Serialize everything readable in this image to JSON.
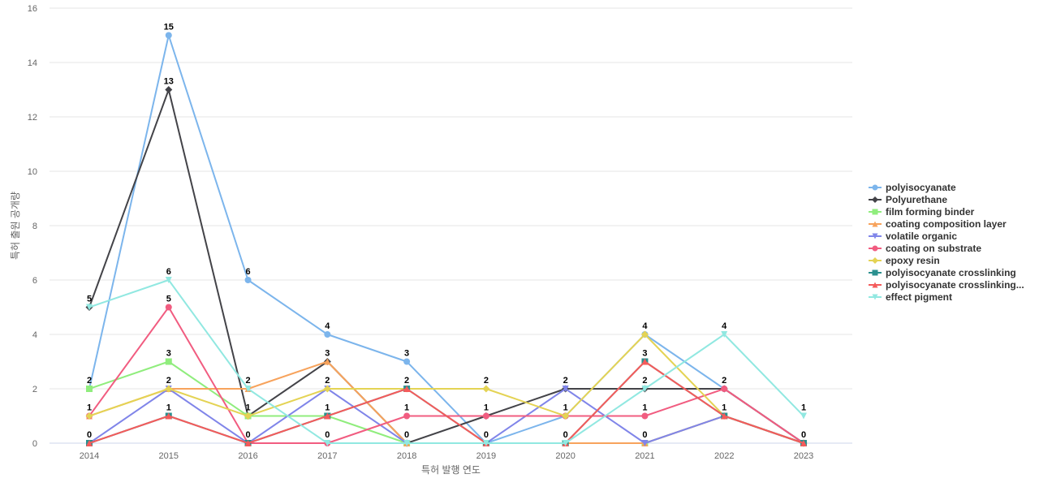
{
  "chart_data": {
    "type": "line",
    "title": "",
    "xlabel": "특허 발행 연도",
    "ylabel": "특허 출원 공개량",
    "x": [
      "2014",
      "2015",
      "2016",
      "2017",
      "2018",
      "2019",
      "2020",
      "2021",
      "2022",
      "2023"
    ],
    "ylim": [
      0,
      16
    ],
    "yticks": [
      0,
      2,
      4,
      6,
      8,
      10,
      12,
      14,
      16
    ],
    "grid": true,
    "legend_position": "right",
    "series": [
      {
        "name": "polyisocyanate",
        "color": "#7cb5ec",
        "marker": "circle",
        "values": [
          2,
          15,
          6,
          4,
          3,
          0,
          1,
          4,
          2,
          0
        ]
      },
      {
        "name": "Polyurethane",
        "color": "#434348",
        "marker": "diamond",
        "values": [
          5,
          13,
          1,
          3,
          0,
          1,
          2,
          2,
          2,
          0
        ]
      },
      {
        "name": "film forming binder",
        "color": "#90ed7d",
        "marker": "square",
        "values": [
          2,
          3,
          1,
          1,
          0,
          0,
          0,
          0,
          1,
          0
        ]
      },
      {
        "name": "coating composition layer",
        "color": "#f7a35c",
        "marker": "triangle",
        "values": [
          1,
          2,
          2,
          3,
          0,
          0,
          0,
          0,
          1,
          0
        ]
      },
      {
        "name": "volatile organic",
        "color": "#8085e9",
        "marker": "triangle-down",
        "values": [
          0,
          2,
          0,
          2,
          0,
          0,
          2,
          0,
          1,
          0
        ]
      },
      {
        "name": "coating on substrate",
        "color": "#f15c80",
        "marker": "circle",
        "values": [
          1,
          5,
          0,
          0,
          1,
          1,
          1,
          1,
          2,
          0
        ]
      },
      {
        "name": "epoxy resin",
        "color": "#e4d354",
        "marker": "diamond",
        "values": [
          1,
          2,
          1,
          2,
          2,
          2,
          1,
          4,
          1,
          0
        ]
      },
      {
        "name": "polyisocyanate crosslinking",
        "color": "#2b908f",
        "marker": "square",
        "values": [
          0,
          1,
          0,
          1,
          2,
          0,
          0,
          3,
          1,
          0
        ]
      },
      {
        "name": "polyisocyanate crosslinking...",
        "color": "#f45b5b",
        "marker": "triangle",
        "values": [
          0,
          1,
          0,
          1,
          2,
          0,
          0,
          3,
          1,
          0
        ]
      },
      {
        "name": "effect pigment",
        "color": "#91e8e1",
        "marker": "triangle-down",
        "values": [
          5,
          6,
          2,
          0,
          0,
          0,
          0,
          2,
          4,
          1
        ]
      }
    ],
    "data_labels": [
      {
        "x": "2014",
        "labels": [
          {
            "text": "5",
            "series": 1
          },
          {
            "text": "2",
            "series": 2
          },
          {
            "text": "1",
            "series": 6
          },
          {
            "text": "0",
            "series": 7
          }
        ]
      },
      {
        "x": "2015",
        "labels": [
          {
            "text": "15",
            "series": 0
          },
          {
            "text": "13",
            "series": 1
          },
          {
            "text": "6",
            "series": 9
          },
          {
            "text": "5",
            "series": 5
          },
          {
            "text": "3",
            "series": 2
          },
          {
            "text": "2",
            "series": 4
          },
          {
            "text": "1",
            "series": 7
          }
        ]
      },
      {
        "x": "2016",
        "labels": [
          {
            "text": "6",
            "series": 0
          },
          {
            "text": "2",
            "series": 3
          },
          {
            "text": "1",
            "series": 2
          },
          {
            "text": "0",
            "series": 7
          }
        ]
      },
      {
        "x": "2017",
        "labels": [
          {
            "text": "4",
            "series": 0
          },
          {
            "text": "3",
            "series": 3
          },
          {
            "text": "2",
            "series": 4
          },
          {
            "text": "1",
            "series": 7
          },
          {
            "text": "0",
            "series": 9
          }
        ]
      },
      {
        "x": "2018",
        "labels": [
          {
            "text": "3",
            "series": 0
          },
          {
            "text": "2",
            "series": 7
          },
          {
            "text": "1",
            "series": 5
          },
          {
            "text": "0",
            "series": 1
          }
        ]
      },
      {
        "x": "2019",
        "labels": [
          {
            "text": "2",
            "series": 6
          },
          {
            "text": "1",
            "series": 5
          },
          {
            "text": "0",
            "series": 0
          }
        ]
      },
      {
        "x": "2020",
        "labels": [
          {
            "text": "2",
            "series": 1
          },
          {
            "text": "1",
            "series": 6
          },
          {
            "text": "0",
            "series": 9
          }
        ]
      },
      {
        "x": "2021",
        "labels": [
          {
            "text": "4",
            "series": 6
          },
          {
            "text": "3",
            "series": 7
          },
          {
            "text": "2",
            "series": 1
          },
          {
            "text": "1",
            "series": 5
          },
          {
            "text": "0",
            "series": 4
          }
        ]
      },
      {
        "x": "2022",
        "labels": [
          {
            "text": "4",
            "series": 9
          },
          {
            "text": "2",
            "series": 5
          },
          {
            "text": "1",
            "series": 7
          }
        ]
      },
      {
        "x": "2023",
        "labels": [
          {
            "text": "1",
            "series": 9
          },
          {
            "text": "0",
            "series": 0
          }
        ]
      }
    ]
  }
}
